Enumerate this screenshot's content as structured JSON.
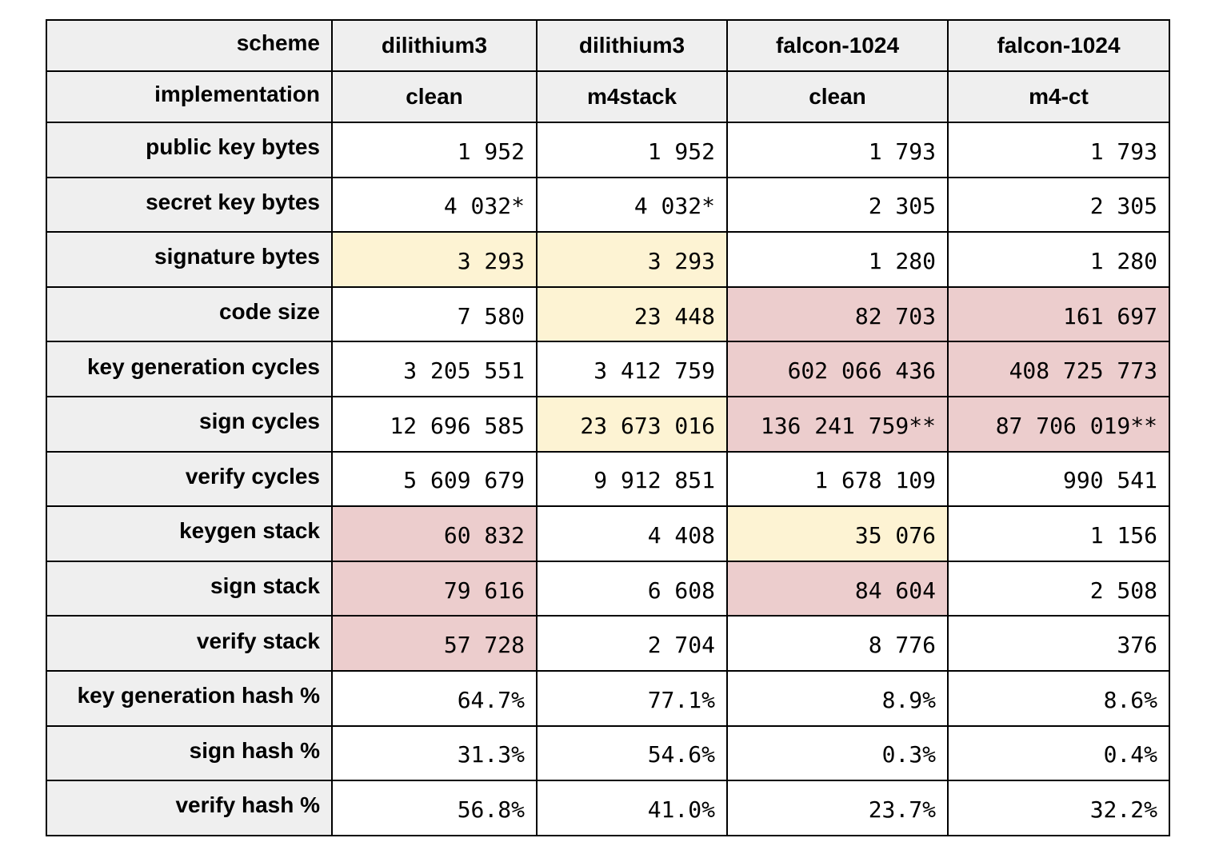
{
  "colors": {
    "header_bg": "#efefef",
    "highlight_yellow": "#fdf3d3",
    "highlight_red": "#eccdcd"
  },
  "table": {
    "header_rows": [
      {
        "label": "scheme",
        "cells": [
          "dilithium3",
          "dilithium3",
          "falcon-1024",
          "falcon-1024"
        ]
      },
      {
        "label": "implementation",
        "cells": [
          "clean",
          "m4stack",
          "clean",
          "m4-ct"
        ]
      }
    ],
    "rows": [
      {
        "label": "public key bytes",
        "cells": [
          {
            "value": "1 952",
            "highlight": "none"
          },
          {
            "value": "1 952",
            "highlight": "none"
          },
          {
            "value": "1 793",
            "highlight": "none"
          },
          {
            "value": "1 793",
            "highlight": "none"
          }
        ]
      },
      {
        "label": "secret key bytes",
        "cells": [
          {
            "value": "4 032*",
            "highlight": "none"
          },
          {
            "value": "4 032*",
            "highlight": "none"
          },
          {
            "value": "2 305",
            "highlight": "none"
          },
          {
            "value": "2 305",
            "highlight": "none"
          }
        ]
      },
      {
        "label": "signature bytes",
        "cells": [
          {
            "value": "3 293",
            "highlight": "yellow"
          },
          {
            "value": "3 293",
            "highlight": "yellow"
          },
          {
            "value": "1 280",
            "highlight": "none"
          },
          {
            "value": "1 280",
            "highlight": "none"
          }
        ]
      },
      {
        "label": "code size",
        "cells": [
          {
            "value": "7 580",
            "highlight": "none"
          },
          {
            "value": "23 448",
            "highlight": "yellow"
          },
          {
            "value": "82 703",
            "highlight": "red"
          },
          {
            "value": "161 697",
            "highlight": "red"
          }
        ]
      },
      {
        "label": "key generation cycles",
        "cells": [
          {
            "value": "3 205 551",
            "highlight": "none"
          },
          {
            "value": "3 412 759",
            "highlight": "none"
          },
          {
            "value": "602 066 436",
            "highlight": "red"
          },
          {
            "value": "408 725 773",
            "highlight": "red"
          }
        ]
      },
      {
        "label": "sign cycles",
        "cells": [
          {
            "value": "12 696 585",
            "highlight": "none"
          },
          {
            "value": "23 673 016",
            "highlight": "yellow"
          },
          {
            "value": "136 241 759**",
            "highlight": "red"
          },
          {
            "value": "87 706 019**",
            "highlight": "red"
          }
        ]
      },
      {
        "label": "verify cycles",
        "cells": [
          {
            "value": "5 609 679",
            "highlight": "none"
          },
          {
            "value": "9 912 851",
            "highlight": "none"
          },
          {
            "value": "1 678 109",
            "highlight": "none"
          },
          {
            "value": "990 541",
            "highlight": "none"
          }
        ]
      },
      {
        "label": "keygen stack",
        "cells": [
          {
            "value": "60 832",
            "highlight": "red"
          },
          {
            "value": "4 408",
            "highlight": "none"
          },
          {
            "value": "35 076",
            "highlight": "yellow"
          },
          {
            "value": "1 156",
            "highlight": "none"
          }
        ]
      },
      {
        "label": "sign stack",
        "cells": [
          {
            "value": "79 616",
            "highlight": "red"
          },
          {
            "value": "6 608",
            "highlight": "none"
          },
          {
            "value": "84 604",
            "highlight": "red"
          },
          {
            "value": "2 508",
            "highlight": "none"
          }
        ]
      },
      {
        "label": "verify stack",
        "cells": [
          {
            "value": "57 728",
            "highlight": "red"
          },
          {
            "value": "2 704",
            "highlight": "none"
          },
          {
            "value": "8 776",
            "highlight": "none"
          },
          {
            "value": "376",
            "highlight": "none"
          }
        ]
      },
      {
        "label": "key generation hash %",
        "cells": [
          {
            "value": "64.7%",
            "highlight": "none"
          },
          {
            "value": "77.1%",
            "highlight": "none"
          },
          {
            "value": "8.9%",
            "highlight": "none"
          },
          {
            "value": "8.6%",
            "highlight": "none"
          }
        ]
      },
      {
        "label": "sign hash %",
        "cells": [
          {
            "value": "31.3%",
            "highlight": "none"
          },
          {
            "value": "54.6%",
            "highlight": "none"
          },
          {
            "value": "0.3%",
            "highlight": "none"
          },
          {
            "value": "0.4%",
            "highlight": "none"
          }
        ]
      },
      {
        "label": "verify hash %",
        "cells": [
          {
            "value": "56.8%",
            "highlight": "none"
          },
          {
            "value": "41.0%",
            "highlight": "none"
          },
          {
            "value": "23.7%",
            "highlight": "none"
          },
          {
            "value": "32.2%",
            "highlight": "none"
          }
        ]
      }
    ]
  }
}
